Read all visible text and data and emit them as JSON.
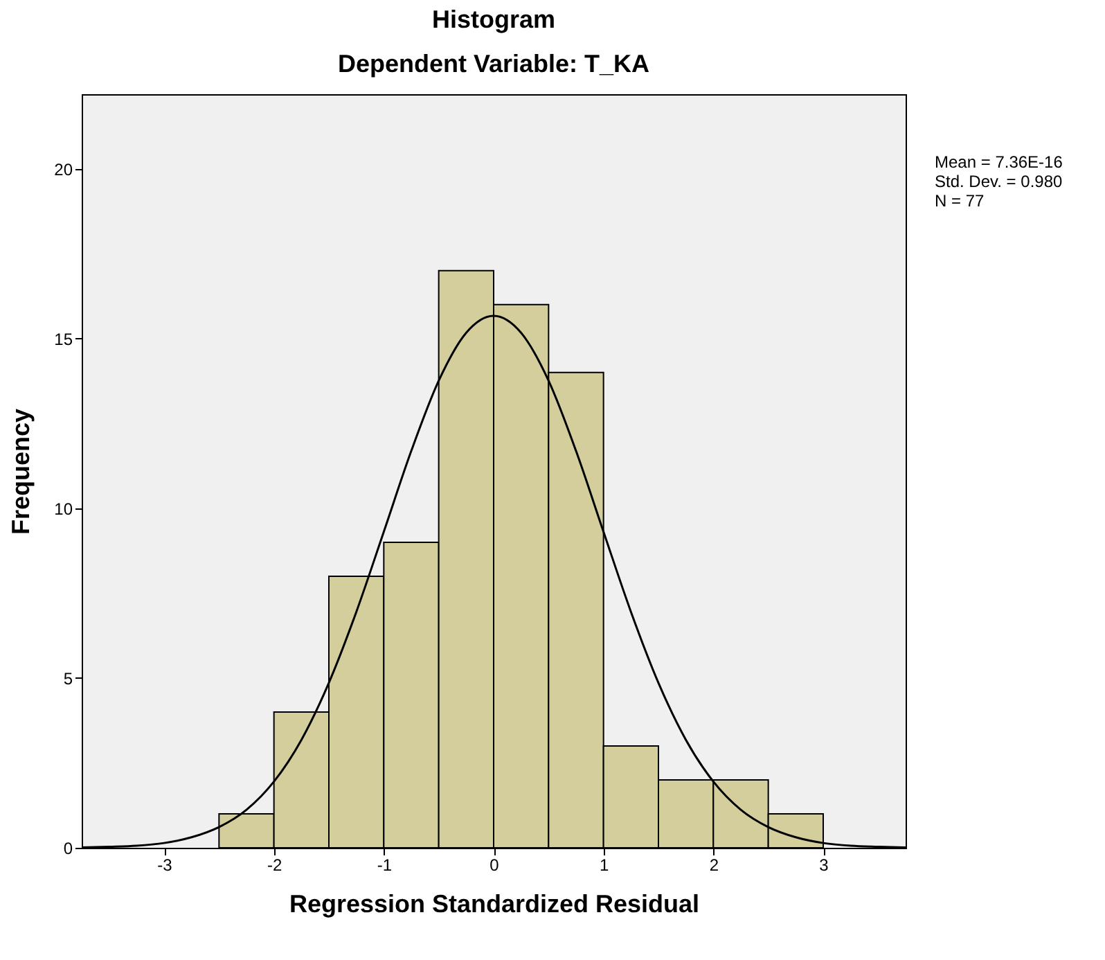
{
  "chart_data": {
    "type": "histogram",
    "title": "Histogram",
    "subtitle": "Dependent Variable: T_KA",
    "xlabel": "Regression Standardized Residual",
    "ylabel": "Frequency",
    "bins": [
      -2.5,
      -2,
      -1.5,
      -1,
      -0.5,
      0,
      0.5,
      1,
      1.5,
      2,
      2.5,
      3
    ],
    "values": [
      1,
      4,
      8,
      9,
      17,
      16,
      14,
      3,
      2,
      2,
      1
    ],
    "color": "#d3ce9b",
    "series": [
      {
        "type": "line",
        "color": "#000000",
        "x": [
          -3.75,
          -3.5,
          -3.25,
          -3,
          -2.75,
          -2.5,
          -2.25,
          -2,
          -1.75,
          -1.5,
          -1.25,
          -1,
          -0.75,
          -0.5,
          -0.25,
          0,
          0.25,
          0.5,
          0.75,
          1,
          1.25,
          1.5,
          1.75,
          2,
          2.25,
          2.5,
          2.75,
          3,
          3.25,
          3.5,
          3.75
        ],
        "values": [
          0.01,
          0.03,
          0.06,
          0.14,
          0.31,
          0.61,
          1.12,
          1.95,
          3.18,
          4.86,
          6.95,
          9.31,
          11.69,
          13.76,
          15.17,
          15.67,
          15.17,
          13.76,
          11.69,
          9.31,
          6.95,
          4.86,
          3.18,
          1.95,
          1.12,
          0.61,
          0.31,
          0.14,
          0.06,
          0.03,
          0.01
        ]
      }
    ],
    "xlim": [
      -3.75,
      3.75
    ],
    "xticks": [
      -3,
      -2,
      -1,
      0,
      1,
      2,
      3
    ],
    "ylim": [
      0,
      22.2
    ],
    "yticks": [
      0,
      5,
      10,
      15,
      20
    ],
    "grid": false,
    "marker": "none",
    "annotations": [
      "Mean = 7.36E-16",
      "Std. Dev. = 0.980",
      "N = 77"
    ]
  }
}
